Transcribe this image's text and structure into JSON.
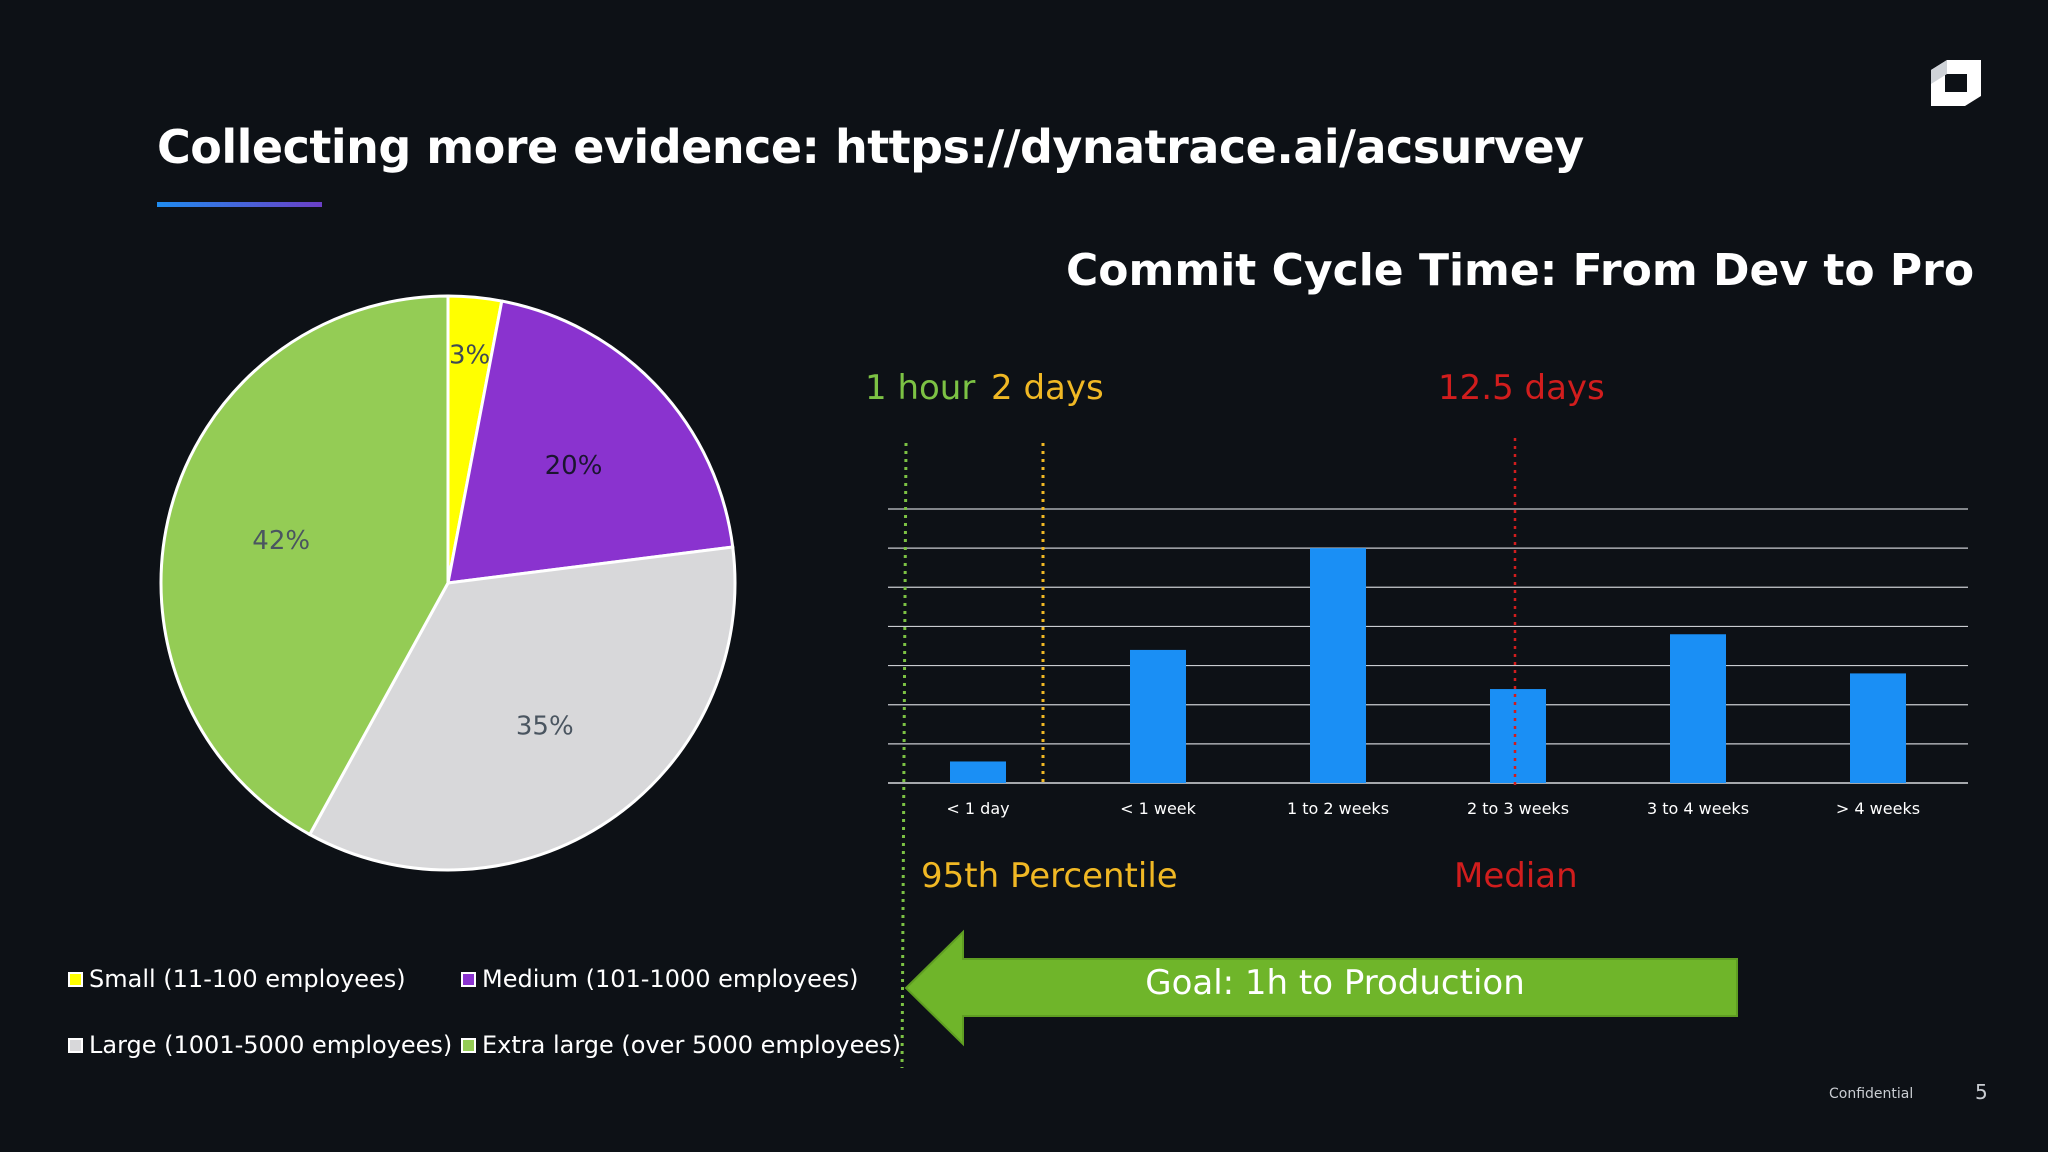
{
  "slide": {
    "title": "Collecting more evidence: https://dynatrace.ai/acsurvey",
    "confidential": "Confidential",
    "page_number": "5"
  },
  "pie": {
    "slices": [
      {
        "label": "Small (11-100 employees)",
        "percent": 3,
        "display": "3%",
        "color": "#ffff00",
        "text_color": "#3f4a55"
      },
      {
        "label": "Medium (101-1000 employees)",
        "percent": 20,
        "display": "20%",
        "color": "#8a33cf",
        "text_color": "#1b1530"
      },
      {
        "label": "Large (1001-5000 employees)",
        "percent": 35,
        "display": "35%",
        "color": "#d8d8da",
        "text_color": "#4a5560"
      },
      {
        "label": "Extra large (over 5000 employees)",
        "percent": 42,
        "display": "42%",
        "color": "#94cc55",
        "text_color": "#4a5560"
      }
    ]
  },
  "bar_chart": {
    "title": "Commit Cycle Time: From Dev to Pro",
    "bar_color": "#1a8ff5",
    "markers": [
      {
        "label": "1 hour",
        "color": "#7cc244"
      },
      {
        "label": "2 days",
        "color": "#f0b824"
      },
      {
        "label": "12.5 days",
        "color": "#d11d1d"
      }
    ],
    "annotations": [
      {
        "label": "95th Percentile",
        "color": "#f0b824"
      },
      {
        "label": "Median",
        "color": "#d11d1d"
      }
    ],
    "goal": {
      "label": "Goal: 1h to Production",
      "color": "#6fb52a"
    }
  },
  "chart_data": [
    {
      "type": "pie",
      "title": "",
      "categories": [
        "Small (11-100 employees)",
        "Medium (101-1000 employees)",
        "Large (1001-5000 employees)",
        "Extra large (over 5000 employees)"
      ],
      "values": [
        3,
        20,
        35,
        42
      ],
      "legend": "bottom"
    },
    {
      "type": "bar",
      "title": "Commit Cycle Time: From Dev to Pro",
      "categories": [
        "< 1 day",
        "< 1 week",
        "1 to 2 weeks",
        "2 to 3 weeks",
        "3 to 4 weeks",
        "> 4 weeks"
      ],
      "values": [
        0.55,
        3.4,
        6.0,
        2.4,
        3.8,
        2.8
      ],
      "ylim": [
        0,
        7
      ],
      "grid": true,
      "xlabel": "",
      "ylabel": ""
    }
  ]
}
